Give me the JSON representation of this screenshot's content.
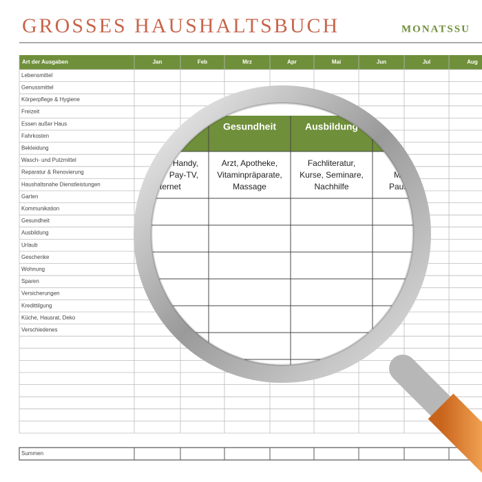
{
  "header": {
    "title": "GROSSES HAUSHALTSBUCH",
    "subtitle": "MONATSSU"
  },
  "table": {
    "columns": [
      "Art der Ausgaben",
      "Jan",
      "Feb",
      "Mrz",
      "Apr",
      "Mai",
      "Jun",
      "Jul",
      "Aug"
    ],
    "rows": [
      "Lebensmittel",
      "Genussmittel",
      "Körperpflege & Hygiene",
      "Freizeit",
      "Essen außer Haus",
      "Fahrkosten",
      "Bekleidung",
      "Wasch- und Putzmittel",
      "Reparatur & Renovierung",
      "Haushaltsnahe Dienstleistungen",
      "Garten",
      "Kommunikation",
      "Gesundheit",
      "Ausbildung",
      "Urlaub",
      "Geschenke",
      "Wohnung",
      "Sparen",
      "Versicherungen",
      "Kredittilgung",
      "Küche, Hausrat, Deko",
      "Verschiedenes"
    ],
    "footer": "Summen"
  },
  "magnifier": {
    "headers": [
      "Gesundheit",
      "Ausbildung"
    ],
    "cells": [
      [
        "Handy,",
        "Pay-TV,",
        "ternet"
      ],
      [
        "Arzt, Apotheke,",
        "Vitaminpräparate,",
        "Massage"
      ],
      [
        "Fachliteratur,",
        "Kurse, Seminare,",
        "Nachhilfe"
      ],
      [
        "M",
        "Paus"
      ]
    ]
  }
}
